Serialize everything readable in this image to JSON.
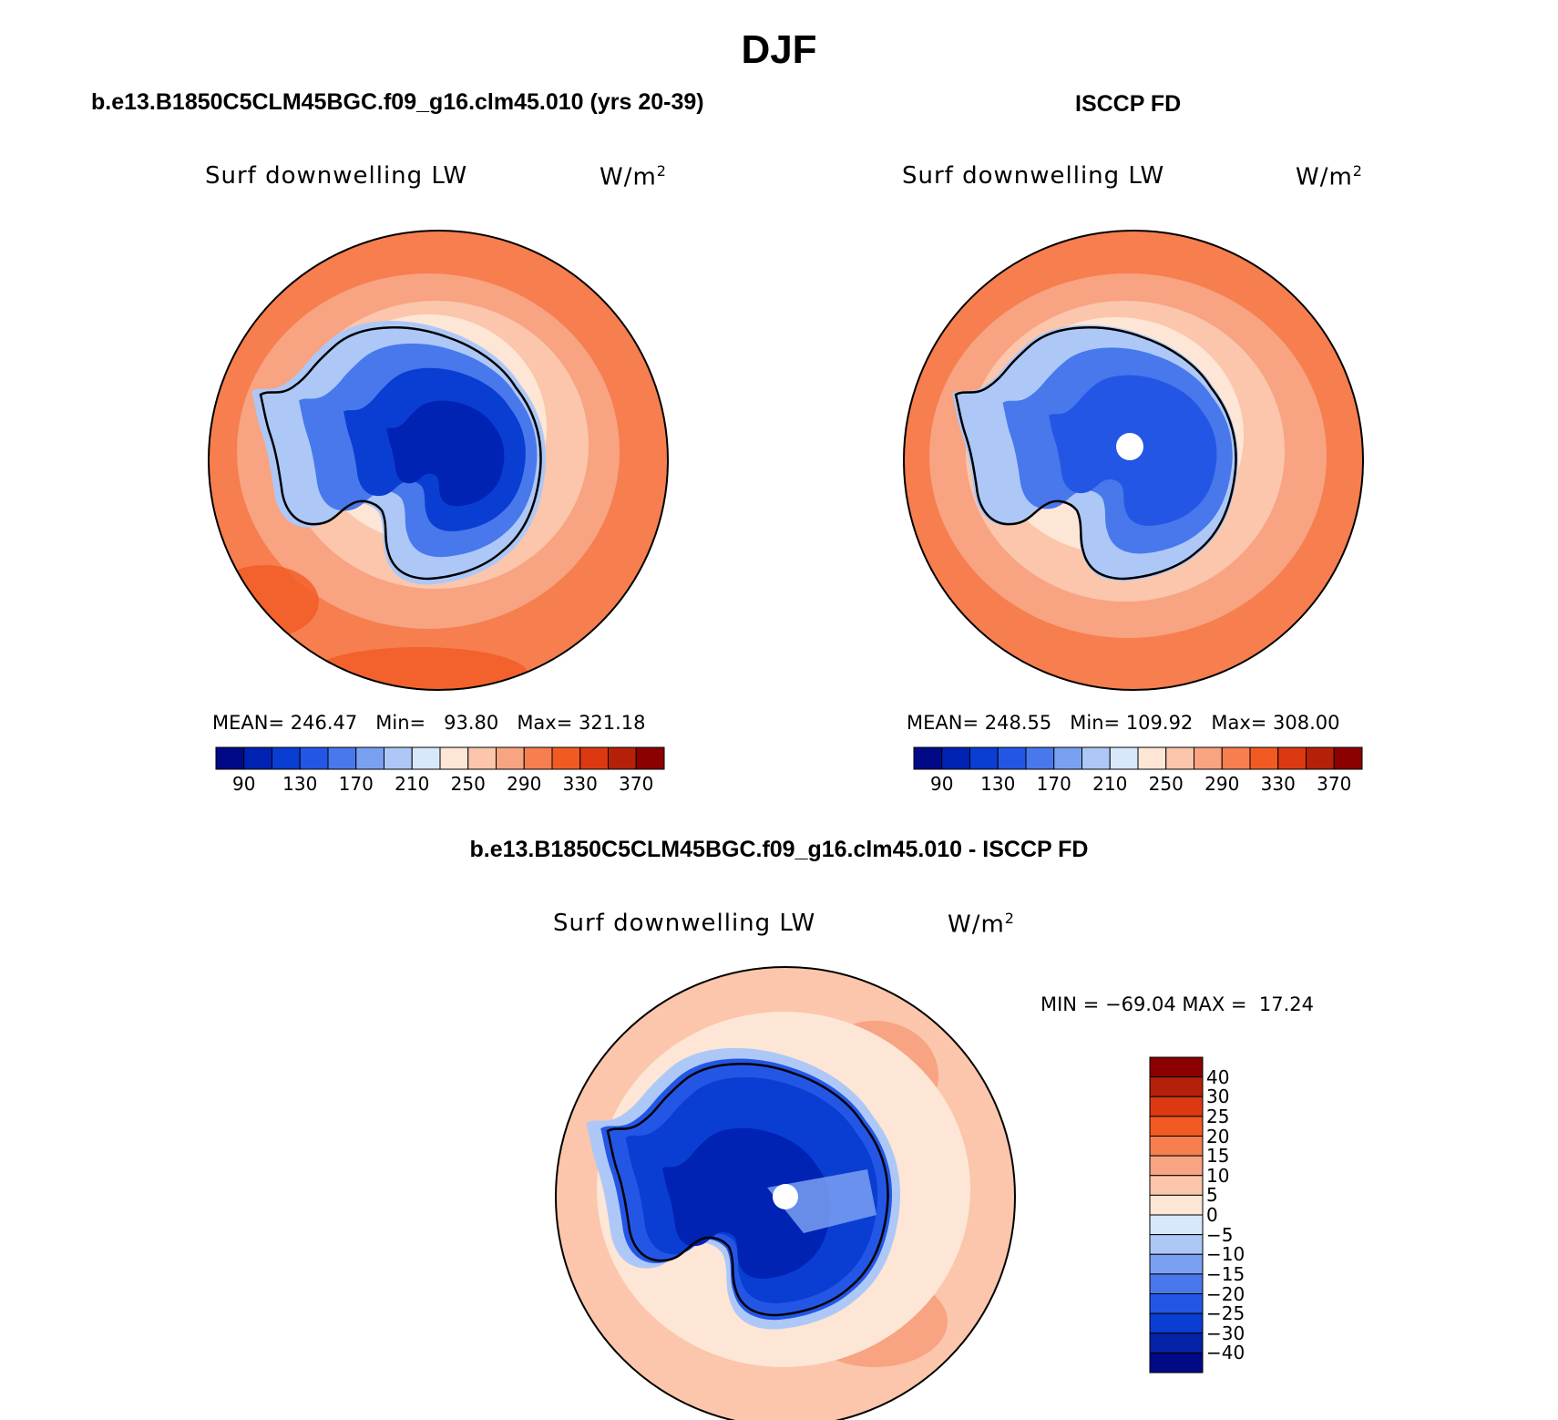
{
  "figure": {
    "season": "DJF",
    "title_model": "b.e13.B1850C5CLM45BGC.f09_g16.clm45.010 (yrs 20-39)",
    "title_obs": "ISCCP FD",
    "title_diff": "b.e13.B1850C5CLM45BGC.f09_g16.clm45.010 - ISCCP FD"
  },
  "panels": {
    "model": {
      "variable": "Surf downwelling LW",
      "units": "W/m",
      "units_exp": "2",
      "mean_label": "MEAN=",
      "mean": "246.47",
      "min_label": "Min=",
      "min": "93.80",
      "max_label": "Max=",
      "max": "321.18"
    },
    "obs": {
      "variable": "Surf downwelling LW",
      "units": "W/m",
      "units_exp": "2",
      "mean_label": "MEAN=",
      "mean": "248.55",
      "min_label": "Min=",
      "min": "109.92",
      "max_label": "Max=",
      "max": "308.00"
    },
    "diff": {
      "variable": "Surf downwelling LW",
      "units": "W/m",
      "units_exp": "2",
      "min_label": "MIN =",
      "min": "−69.04",
      "max_label": "MAX =",
      "max": "17.24"
    }
  },
  "colorbar_abs": {
    "colors": [
      "#000a87",
      "#0023b4",
      "#0a3ed2",
      "#2456e6",
      "#4878ec",
      "#7aa0f2",
      "#adc8f7",
      "#d8e8fb",
      "#fde6d6",
      "#fbc6ab",
      "#f8a382",
      "#f67e4f",
      "#f25a24",
      "#dc3912",
      "#b52108",
      "#8b0000"
    ],
    "labels": [
      "90",
      "130",
      "170",
      "210",
      "250",
      "290",
      "330",
      "370"
    ]
  },
  "colorbar_diff": {
    "colors": [
      "#000a87",
      "#0523a7",
      "#0a3ed2",
      "#2456e6",
      "#4878ec",
      "#7aa0f2",
      "#adc8f7",
      "#d8e8fb",
      "#fde6d6",
      "#fbc6ab",
      "#f8a382",
      "#f67e4f",
      "#f25a24",
      "#dc3912",
      "#b52108",
      "#8b0000"
    ],
    "labels": [
      "40",
      "30",
      "25",
      "20",
      "15",
      "10",
      "5",
      "0",
      "−5",
      "−10",
      "−15",
      "−20",
      "−25",
      "−30",
      "−40"
    ]
  }
}
